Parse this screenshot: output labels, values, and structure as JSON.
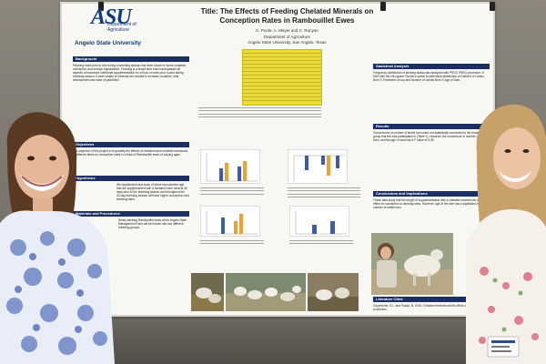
{
  "corner_caption": "",
  "logo": {
    "mark": "ASU",
    "department": "Department of Agriculture",
    "university": "Angelo State University"
  },
  "poster": {
    "title": "Title: The Effects of Feeding Chelated Minerals on Conception Rates in Rambouillet Ewes",
    "authors": "C. Poole, A. Meyer and C. Runyan",
    "department": "Department of Agriculture",
    "university": "Angelo State University, San Angelo, Texas",
    "sections": {
      "background": "Background",
      "objectives": "Objectives",
      "hypothesis": "Hypothesis",
      "methods": "Materials and Procedures",
      "statistical": "Statistical Analysis",
      "results": "Results",
      "conclusions": "Conclusions and Implications",
      "literature": "Literature Cited"
    },
    "background_text": "Flushing ewes prior to and during a breeding season has been shown to boost ovulation, conception and embryo implantation. Flushing is a broad term that encompasses all aspects of increased nutritional supplementation for a flock of ewes prior to and during breeding season. A wide variety of minerals are needed to increase ovulation, fetal development and ease of parturition.",
    "objectives_text": "The objective of this project is to quantify the effects of chelated trace minerals introduced at different times on conception rates in a flock of Rambouillet ewes of varying ages.",
    "hypothesis_text": "We hypothesize that ewes of prime reproductive age that are supplemented with a chelated trace mineral 30 days prior to the breeding season and throughout the 30-day breeding season will have higher conception and twinning rates.",
    "methods_text": "Ninety lambing Rambouillet ewes at the Angelo State Management Farm will be broken into two different breeding groups.",
    "statistical_text": "Frequency distribution of lambing status was analyzed with PROC FREQ procedure of SAS with the chi-square Fischer's option to determine distribution of Number of Lambs Born X Treatment Group and Number of Lambs Born X Age of Dam.",
    "results_text": "Occurrences of number of lambs born were not statistically connected to the treatment group that the ewe participated in (Table 1). However, the occurrence of number of lambs born, and the age of dam has a P value of 0.05.",
    "conclusions_text": "These data imply that the length of supplementation with a chelated mineral has no direct effect on conception or lambing rates. However, age of the ewe has a significant effect on number of lambs born.",
    "literature_text": "Goyeneche, S.L. and Pauda, N. 2018. Chelated minerals and its effect on animal production."
  }
}
